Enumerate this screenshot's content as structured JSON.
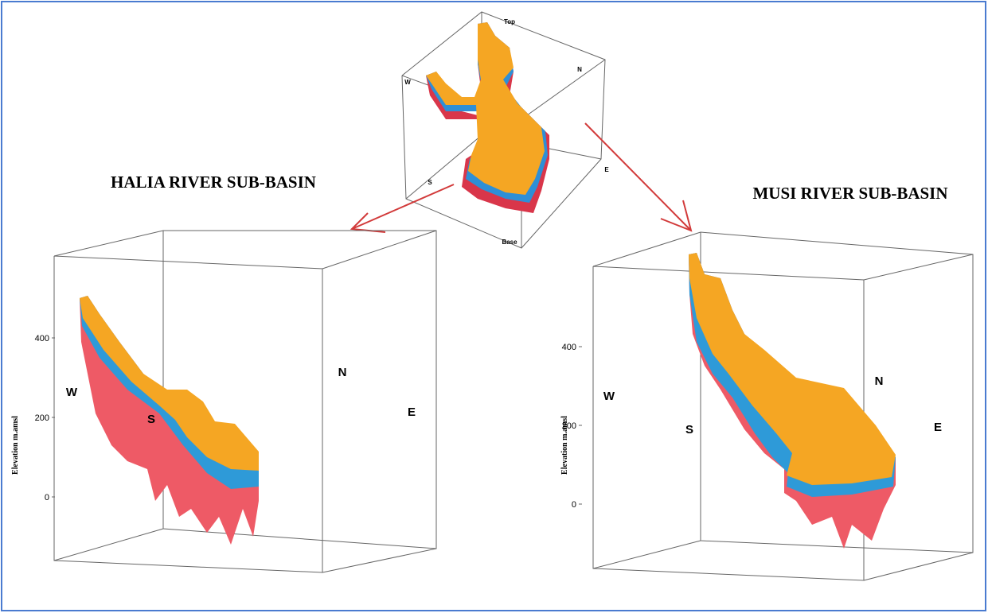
{
  "overview": {
    "top": "Top",
    "base": "Base",
    "n": "N",
    "w": "W",
    "s": "S",
    "e": "E"
  },
  "panels": [
    {
      "title": "HALIA RIVER SUB-BASIN",
      "axis_label": "Elevation m.amsl",
      "ticks": [
        400,
        200,
        0
      ],
      "directions": {
        "w": "W",
        "s": "S",
        "n": "N",
        "e": "E"
      }
    },
    {
      "title": "MUSI RIVER SUB-BASIN",
      "axis_label": "Elevation m.amsl",
      "ticks": [
        400,
        200,
        0
      ],
      "directions": {
        "w": "W",
        "s": "S",
        "n": "N",
        "e": "E"
      }
    }
  ]
}
